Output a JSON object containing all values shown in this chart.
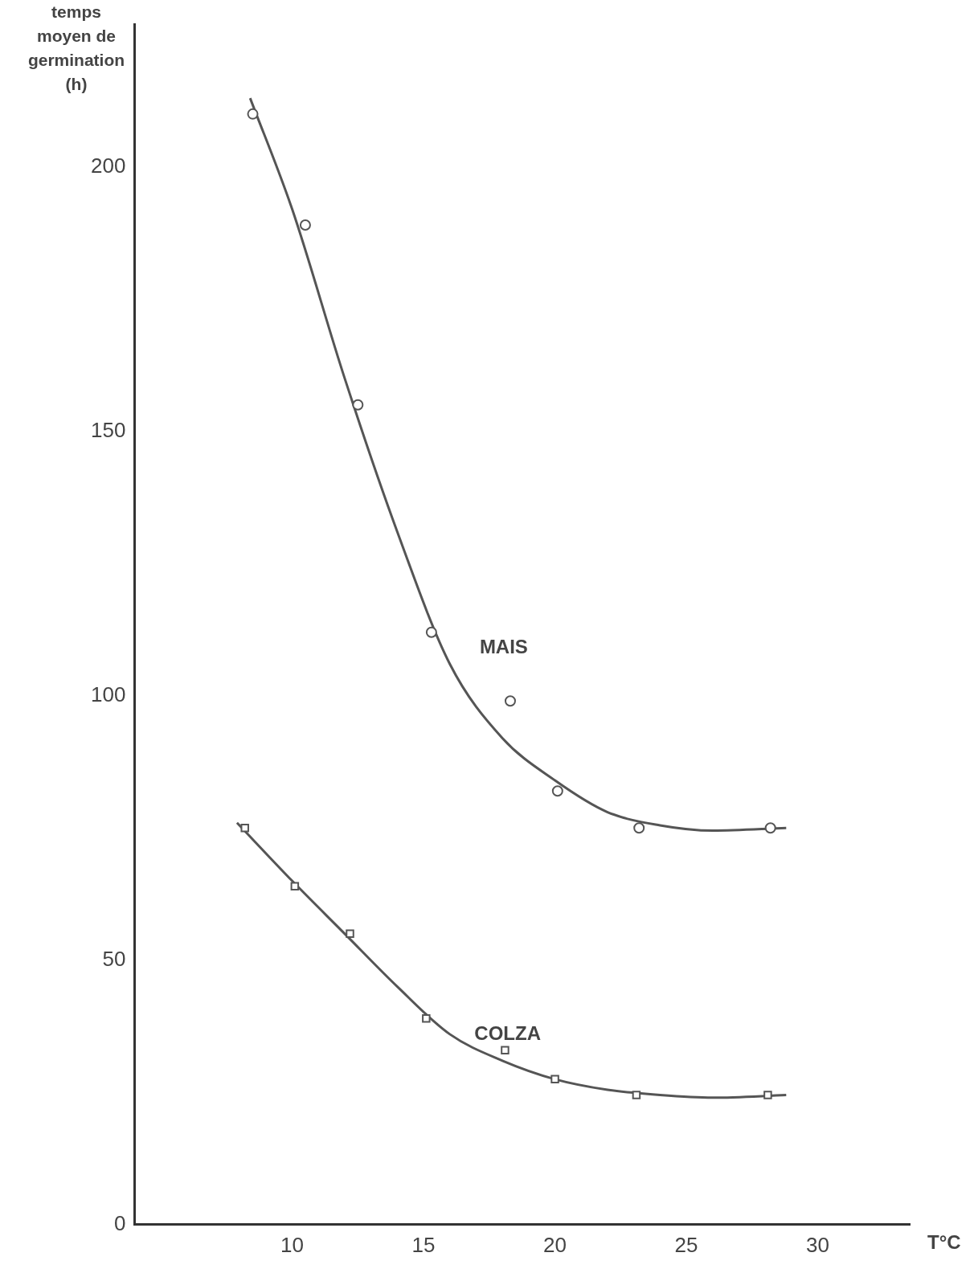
{
  "chart_data": {
    "type": "scatter",
    "ylabel": "temps moyen de germination (h)",
    "xlabel": "T°C",
    "xlim": [
      4,
      33.5
    ],
    "ylim": [
      0,
      227
    ],
    "xticks": [
      10,
      15,
      20,
      25,
      30
    ],
    "yticks": [
      0,
      50,
      100,
      150,
      200
    ],
    "grid": false,
    "legend": false,
    "series": [
      {
        "name": "MAIS",
        "type": "scatter",
        "marker": "circle",
        "color": "#555555",
        "x": [
          8.5,
          10.5,
          12.5,
          15.3,
          18.3,
          20.1,
          23.2,
          28.2
        ],
        "values": [
          210,
          189,
          155,
          112,
          99,
          82,
          75,
          75
        ]
      },
      {
        "name": "COLZA",
        "type": "scatter",
        "marker": "square",
        "color": "#555555",
        "x": [
          8.2,
          10.1,
          12.2,
          15.1,
          18.1,
          20.0,
          23.1,
          28.1
        ],
        "values": [
          75,
          64,
          55,
          39,
          33,
          27.5,
          24.5,
          24.5
        ]
      },
      {
        "type": "line",
        "marker": "none",
        "color": "#555555",
        "x": [
          8.4,
          10,
          12,
          14,
          16,
          18,
          20,
          22,
          24,
          26,
          28.8
        ],
        "values": [
          213,
          192,
          160,
          131,
          106,
          92,
          84,
          78,
          75.5,
          74.5,
          75
        ]
      },
      {
        "type": "line",
        "marker": "none",
        "color": "#555555",
        "x": [
          7.9,
          10,
          12,
          14,
          16,
          18,
          20,
          22,
          24,
          26,
          28.8
        ],
        "values": [
          76,
          65,
          55,
          45,
          36,
          31,
          27.5,
          25.5,
          24.5,
          24,
          24.5
        ]
      }
    ]
  }
}
